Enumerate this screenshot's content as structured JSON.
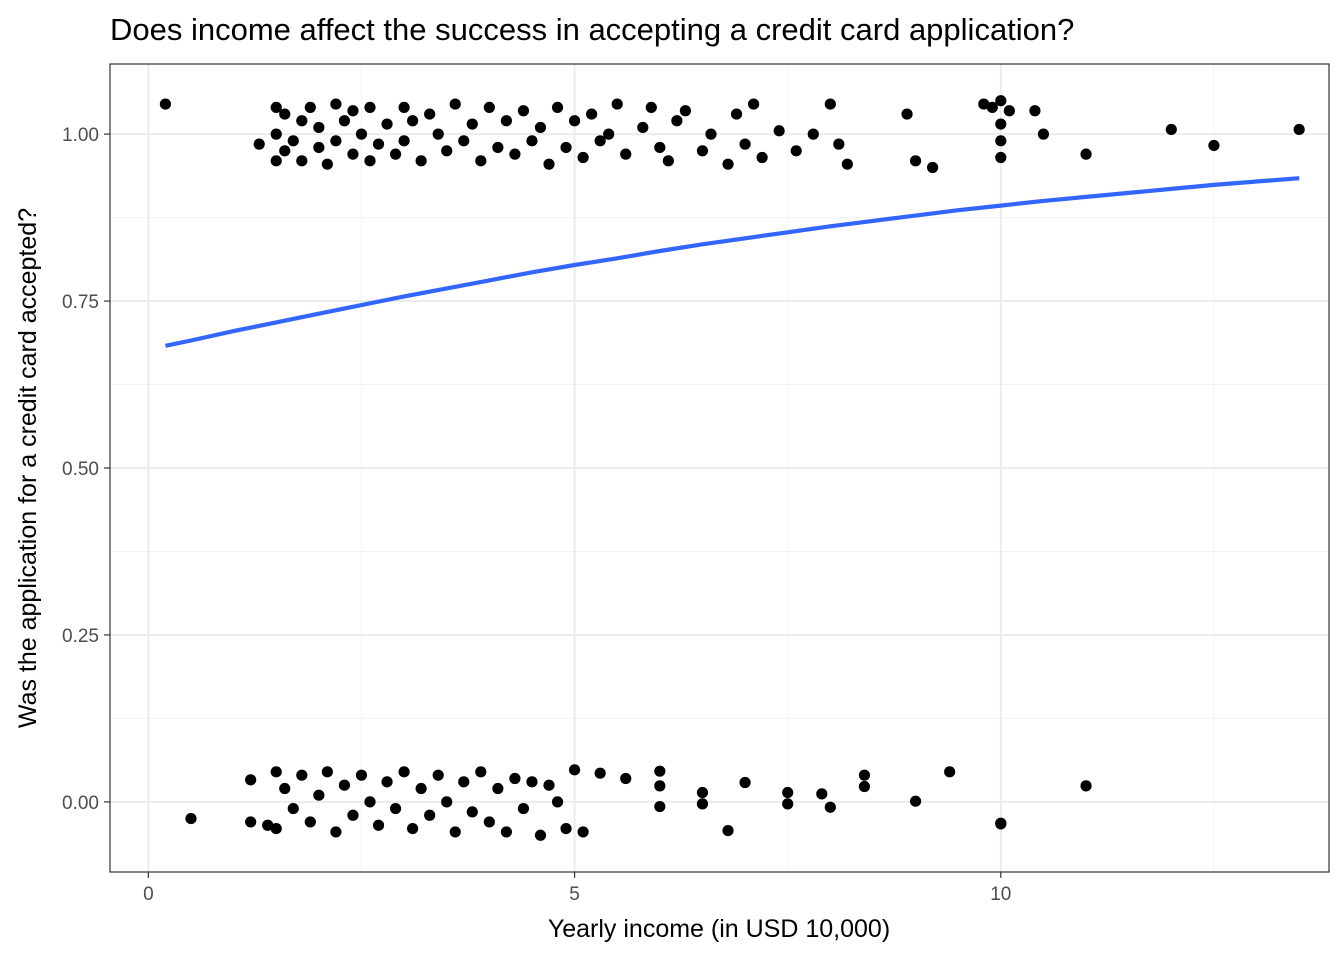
{
  "chart_data": {
    "type": "scatter",
    "title": "Does income affect the success in accepting a credit card application?",
    "xlabel": "Yearly income (in USD 10,000)",
    "ylabel": "Was the application for a credit card accepted?",
    "xlim": [
      -0.45,
      13.85
    ],
    "ylim": [
      -0.105,
      1.105
    ],
    "x_ticks": [
      0,
      5,
      10
    ],
    "x_tick_labels": [
      "0",
      "5",
      "10"
    ],
    "y_ticks": [
      0,
      0.25,
      0.5,
      0.75,
      1.0
    ],
    "y_tick_labels": [
      "0.00",
      "0.25",
      "0.50",
      "0.75",
      "1.00"
    ],
    "grid": true,
    "legend": "none",
    "colors": {
      "points": "#000000",
      "fit_line": "#3366ff"
    },
    "series": [
      {
        "kind": "points",
        "y_group": 1,
        "x": [
          0.2,
          1.3,
          1.5,
          1.5,
          1.5,
          1.6,
          1.6,
          1.7,
          1.8,
          1.8,
          1.9,
          2.0,
          2.0,
          2.1,
          2.2,
          2.2,
          2.3,
          2.4,
          2.4,
          2.5,
          2.6,
          2.6,
          2.7,
          2.8,
          2.9,
          3.0,
          3.0,
          3.1,
          3.2,
          3.3,
          3.4,
          3.5,
          3.6,
          3.7,
          3.8,
          3.9,
          4.0,
          4.1,
          4.2,
          4.3,
          4.4,
          4.5,
          4.6,
          4.7,
          4.8,
          4.9,
          5.0,
          5.1,
          5.2,
          5.3,
          5.4,
          5.5,
          5.6,
          5.8,
          5.9,
          6.0,
          6.1,
          6.2,
          6.3,
          6.5,
          6.6,
          6.8,
          6.9,
          7.0,
          7.1,
          7.2,
          7.4,
          7.6,
          7.8,
          8.0,
          8.1,
          8.2,
          8.9,
          9.0,
          9.2,
          9.8,
          9.9,
          10.0,
          10.0,
          10.0,
          10.0,
          10.1,
          10.4,
          10.5,
          11.0,
          12.0,
          12.5,
          13.5
        ],
        "y": [
          1.045,
          0.985,
          0.96,
          1.04,
          1.0,
          0.975,
          1.03,
          0.99,
          1.02,
          0.96,
          1.04,
          0.98,
          1.01,
          0.955,
          1.045,
          0.99,
          1.02,
          0.97,
          1.035,
          1.0,
          0.96,
          1.04,
          0.985,
          1.015,
          0.97,
          1.04,
          0.99,
          1.02,
          0.96,
          1.03,
          1.0,
          0.975,
          1.045,
          0.99,
          1.015,
          0.96,
          1.04,
          0.98,
          1.02,
          0.97,
          1.035,
          0.99,
          1.01,
          0.955,
          1.04,
          0.98,
          1.02,
          0.965,
          1.03,
          0.99,
          1.0,
          1.045,
          0.97,
          1.01,
          1.04,
          0.98,
          0.96,
          1.02,
          1.035,
          0.975,
          1.0,
          0.955,
          1.03,
          0.985,
          1.045,
          0.965,
          1.005,
          0.975,
          1.0,
          1.045,
          0.985,
          0.955,
          1.03,
          0.96,
          0.95,
          1.045,
          1.04,
          0.965,
          1.015,
          0.99,
          1.05,
          1.035,
          1.035,
          1.0,
          0.97,
          1.007,
          0.983,
          1.007
        ]
      },
      {
        "kind": "points",
        "y_group": 0,
        "x": [
          0.5,
          1.2,
          1.2,
          1.4,
          1.5,
          1.5,
          1.6,
          1.7,
          1.8,
          1.9,
          2.0,
          2.1,
          2.2,
          2.3,
          2.4,
          2.5,
          2.6,
          2.7,
          2.8,
          2.9,
          3.0,
          3.1,
          3.2,
          3.3,
          3.4,
          3.5,
          3.6,
          3.7,
          3.8,
          3.9,
          4.0,
          4.1,
          4.2,
          4.3,
          4.4,
          4.5,
          4.6,
          4.7,
          4.8,
          4.9,
          5.0,
          5.1,
          5.3,
          5.6,
          6.0,
          6.0,
          6.0,
          6.5,
          6.5,
          6.8,
          7.0,
          7.5,
          7.5,
          7.9,
          8.0,
          8.4,
          8.4,
          9.0,
          9.4,
          10.0,
          10.0,
          11.0
        ],
        "y": [
          -0.025,
          0.033,
          -0.03,
          -0.035,
          0.045,
          -0.04,
          0.02,
          -0.01,
          0.04,
          -0.03,
          0.01,
          0.045,
          -0.045,
          0.025,
          -0.02,
          0.04,
          0.0,
          -0.035,
          0.03,
          -0.01,
          0.045,
          -0.04,
          0.02,
          -0.02,
          0.04,
          0.0,
          -0.045,
          0.03,
          -0.015,
          0.045,
          -0.03,
          0.02,
          -0.045,
          0.035,
          -0.01,
          0.03,
          -0.05,
          0.025,
          0.0,
          -0.04,
          0.048,
          -0.045,
          0.043,
          0.035,
          0.046,
          0.024,
          -0.007,
          0.014,
          -0.003,
          -0.043,
          0.029,
          0.014,
          -0.003,
          0.012,
          -0.008,
          0.04,
          0.023,
          0.001,
          0.045,
          -0.033,
          -0.032,
          0.024
        ]
      },
      {
        "kind": "line",
        "x": [
          0.2,
          0.5,
          1.0,
          1.5,
          2.0,
          2.5,
          3.0,
          3.5,
          4.0,
          4.5,
          5.0,
          5.5,
          6.0,
          6.5,
          7.0,
          7.5,
          8.0,
          8.5,
          9.0,
          9.5,
          10.0,
          10.5,
          11.0,
          11.5,
          12.0,
          12.5,
          13.0,
          13.5
        ],
        "y": [
          0.683,
          0.691,
          0.705,
          0.718,
          0.731,
          0.744,
          0.757,
          0.769,
          0.781,
          0.793,
          0.804,
          0.814,
          0.825,
          0.835,
          0.844,
          0.853,
          0.862,
          0.87,
          0.878,
          0.886,
          0.893,
          0.9,
          0.906,
          0.912,
          0.918,
          0.924,
          0.929,
          0.934
        ]
      }
    ]
  }
}
